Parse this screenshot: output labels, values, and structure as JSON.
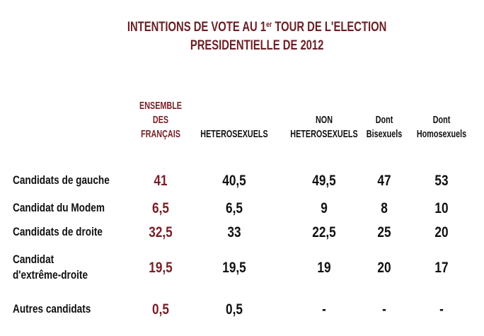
{
  "title": {
    "line1_pre": "INTENTIONS DE VOTE AU 1",
    "line1_sup": "er",
    "line1_post": " TOUR DE L'ELECTION",
    "line2": "PRESIDENTIELLE DE 2012"
  },
  "headers": [
    [
      "ENSEMBLE",
      "DES",
      "FRANÇAIS"
    ],
    [
      "HETEROSEXUELS"
    ],
    [
      "NON",
      "HETEROSEXUELS"
    ],
    [
      "Dont",
      "Bisexuels"
    ],
    [
      "Dont",
      "Homosexuels"
    ]
  ],
  "chart_data": {
    "type": "table",
    "title": "INTENTIONS DE VOTE AU 1er TOUR DE L'ELECTION PRESIDENTIELLE DE 2012",
    "columns": [
      "ENSEMBLE DES FRANÇAIS",
      "HETEROSEXUELS",
      "NON HETEROSEXUELS",
      "Dont Bisexuels",
      "Dont Homosexuels"
    ],
    "rows": [
      {
        "label": [
          "Candidats de gauche"
        ],
        "values": [
          "41",
          "40,5",
          "49,5",
          "47",
          "53"
        ]
      },
      {
        "label": [
          "Candidat du Modem"
        ],
        "values": [
          "6,5",
          "6,5",
          "9",
          "8",
          "10"
        ]
      },
      {
        "label": [
          "Candidats de droite"
        ],
        "values": [
          "32,5",
          "33",
          "22,5",
          "25",
          "20"
        ]
      },
      {
        "label": [
          "Candidat",
          "d'extrême-droite"
        ],
        "values": [
          "19,5",
          "19,5",
          "19",
          "20",
          "17"
        ]
      },
      {
        "label": [
          "Autres candidats"
        ],
        "values": [
          "0,5",
          "0,5",
          "-",
          "-",
          "-"
        ]
      }
    ]
  },
  "colors": {
    "accent": "#7a1f27",
    "title": "#6b1f25",
    "text": "#111111"
  }
}
